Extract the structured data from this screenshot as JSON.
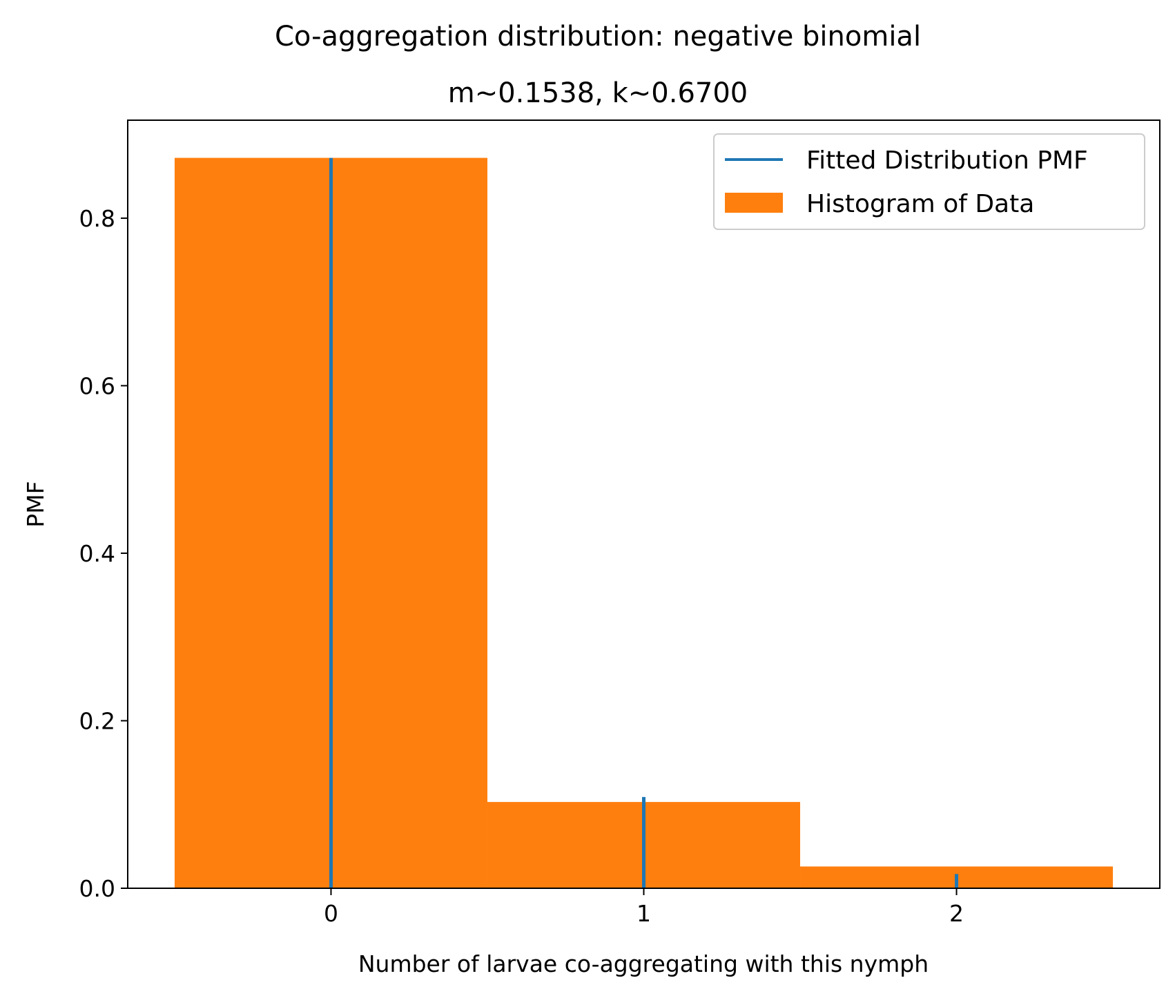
{
  "chart_data": {
    "type": "bar",
    "title": "Co-aggregation distribution: negative binomial",
    "subtitle": "m~0.1538, k~0.6700",
    "xlabel": "Number of larvae co-aggregating with this nymph",
    "ylabel": "PMF",
    "xlim": [
      -0.65,
      2.65
    ],
    "ylim": [
      0,
      0.917
    ],
    "x_ticks": [
      {
        "value": 0,
        "label": "0"
      },
      {
        "value": 1,
        "label": "1"
      },
      {
        "value": 2,
        "label": "2"
      }
    ],
    "y_ticks": [
      {
        "value": 0.0,
        "label": "0.0"
      },
      {
        "value": 0.2,
        "label": "0.2"
      },
      {
        "value": 0.4,
        "label": "0.4"
      },
      {
        "value": 0.6,
        "label": "0.6"
      },
      {
        "value": 0.8,
        "label": "0.8"
      }
    ],
    "grid": false,
    "legend_position": "top-right",
    "series": [
      {
        "name": "Fitted Distribution PMF",
        "kind": "stem",
        "color": "#1f77b4",
        "x": [
          0,
          1,
          2
        ],
        "values": [
          0.872,
          0.109,
          0.017
        ]
      },
      {
        "name": "Histogram of Data",
        "kind": "histogram",
        "color": "#ff7f0e",
        "bins": [
          [
            -0.5,
            0.5
          ],
          [
            0.5,
            1.5
          ],
          [
            1.5,
            2.5
          ]
        ],
        "values": [
          0.872,
          0.103,
          0.026
        ]
      }
    ]
  }
}
